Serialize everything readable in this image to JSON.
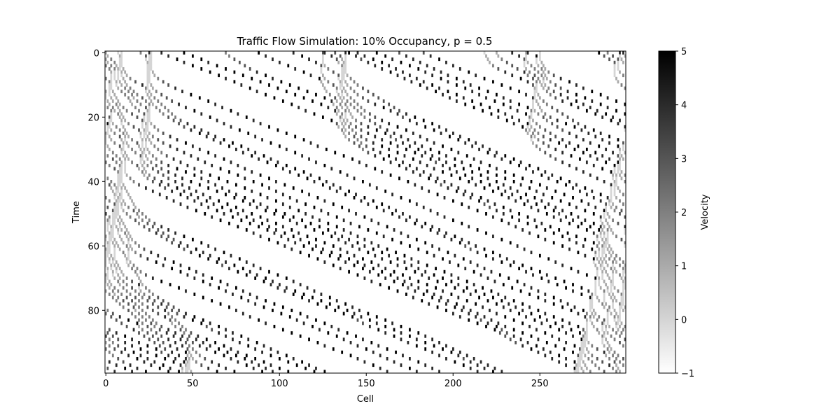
{
  "chart_data": {
    "type": "heatmap",
    "title": "Traffic Flow Simulation: 10% Occupancy, p = 0.5",
    "xlabel": "Cell",
    "ylabel": "Time",
    "xlim": [
      0,
      299
    ],
    "ylim": [
      99,
      0
    ],
    "x_ticks": [
      0,
      50,
      100,
      150,
      200,
      250
    ],
    "y_ticks": [
      0,
      20,
      40,
      60,
      80
    ],
    "colorbar": {
      "label": "Velocity",
      "vmin": -1,
      "vmax": 5,
      "ticks": [
        -1,
        0,
        1,
        2,
        3,
        4,
        5
      ],
      "cmap": "Greys",
      "color_low": "#ffffff",
      "color_high": "#000000"
    },
    "grid": false,
    "legend": "none",
    "model": {
      "cells": 300,
      "timesteps": 100,
      "occupancy": 0.1,
      "p": 0.5,
      "vmax": 5,
      "empty_value": -1
    }
  }
}
